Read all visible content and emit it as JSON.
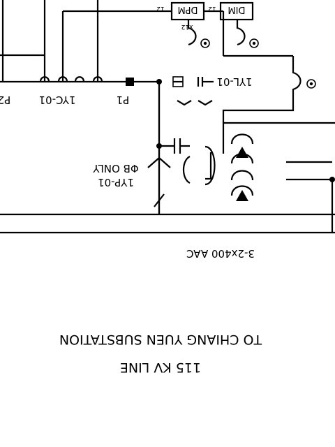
{
  "labels": {
    "dpm": "DPM",
    "dim": "DIM",
    "tag_12_left": "12",
    "tag_12_right": "12",
    "tag_x12": "x12",
    "p2": "P2",
    "iyc": "1YC-01",
    "p1": "P1",
    "iyl": "1YL-01",
    "phase": "ΦB ONLY",
    "iyp": "1YP-01",
    "cable": "3-2x400 AAC",
    "dest_line1": "TO CHIANG YUEN SUBSTATION",
    "dest_line2": "115 KV LINE"
  }
}
